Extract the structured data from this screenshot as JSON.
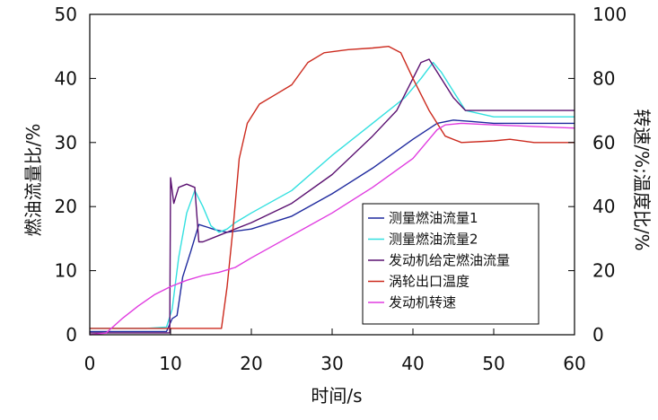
{
  "chart_data": {
    "type": "line",
    "xlabel": "时间/s",
    "ylabel_left": "燃油流量比/%",
    "ylabel_right": "转速/%;温度比/%",
    "xlim": [
      0,
      60
    ],
    "ylim_left": [
      0,
      50
    ],
    "ylim_right": [
      0,
      100
    ],
    "x_ticks": [
      "0",
      "10",
      "20",
      "30",
      "40",
      "50",
      "60"
    ],
    "y_left_ticks": [
      "0",
      "10",
      "20",
      "30",
      "40",
      "50"
    ],
    "y_right_ticks": [
      "0",
      "20",
      "40",
      "60",
      "80",
      "100"
    ],
    "grid": false,
    "legend_position": "bottom-right",
    "series": [
      {
        "name": "测量燃油流量1",
        "axis": "left",
        "color": "#1f2a9e",
        "points": [
          [
            0,
            0.5
          ],
          [
            5,
            0.5
          ],
          [
            9.5,
            0.5
          ],
          [
            10.2,
            2.5
          ],
          [
            10.8,
            3
          ],
          [
            11.5,
            9
          ],
          [
            12.5,
            13
          ],
          [
            13.5,
            17.2
          ],
          [
            14.5,
            16.8
          ],
          [
            15.5,
            16.4
          ],
          [
            17,
            16
          ],
          [
            20,
            16.5
          ],
          [
            25,
            18.5
          ],
          [
            30,
            22
          ],
          [
            35,
            26
          ],
          [
            40,
            30.5
          ],
          [
            43,
            33
          ],
          [
            45,
            33.5
          ],
          [
            47,
            33.3
          ],
          [
            50,
            33
          ],
          [
            55,
            33
          ],
          [
            60,
            33
          ]
        ]
      },
      {
        "name": "测量燃油流量2",
        "axis": "left",
        "color": "#33e0e0",
        "points": [
          [
            0,
            1
          ],
          [
            7,
            1
          ],
          [
            9.5,
            1.2
          ],
          [
            10.2,
            4
          ],
          [
            11,
            12
          ],
          [
            12,
            19
          ],
          [
            13,
            22.5
          ],
          [
            14,
            20
          ],
          [
            15,
            17
          ],
          [
            16,
            16
          ],
          [
            17,
            16.5
          ],
          [
            18,
            17.5
          ],
          [
            20,
            19
          ],
          [
            25,
            22.5
          ],
          [
            30,
            28
          ],
          [
            35,
            33
          ],
          [
            39,
            37
          ],
          [
            41,
            40
          ],
          [
            42.5,
            42.5
          ],
          [
            43.5,
            41
          ],
          [
            45,
            38
          ],
          [
            46.5,
            35
          ],
          [
            50,
            34
          ],
          [
            55,
            34
          ],
          [
            60,
            34
          ]
        ]
      },
      {
        "name": "发动机给定燃油流量",
        "axis": "left",
        "color": "#5a1070",
        "points": [
          [
            0,
            0.3
          ],
          [
            9,
            0.3
          ],
          [
            9.9,
            0.3
          ],
          [
            10,
            24.5
          ],
          [
            10.4,
            20.5
          ],
          [
            11,
            23
          ],
          [
            12,
            23.5
          ],
          [
            13,
            23
          ],
          [
            13.5,
            14.5
          ],
          [
            14,
            14.5
          ],
          [
            16,
            15.5
          ],
          [
            18,
            16.5
          ],
          [
            20,
            17.5
          ],
          [
            25,
            20.5
          ],
          [
            30,
            25
          ],
          [
            35,
            31
          ],
          [
            38,
            35
          ],
          [
            40,
            40
          ],
          [
            41,
            42.5
          ],
          [
            42,
            43
          ],
          [
            43,
            41
          ],
          [
            45,
            37
          ],
          [
            46.5,
            35
          ],
          [
            50,
            35
          ],
          [
            55,
            35
          ],
          [
            60,
            35
          ]
        ]
      },
      {
        "name": "涡轮出口温度",
        "axis": "right",
        "color": "#cc2a1e",
        "points": [
          [
            0,
            2
          ],
          [
            10,
            2
          ],
          [
            16.3,
            2
          ],
          [
            17,
            15
          ],
          [
            17.8,
            35
          ],
          [
            18.5,
            55
          ],
          [
            19.5,
            66
          ],
          [
            21,
            72
          ],
          [
            23,
            75
          ],
          [
            25,
            78
          ],
          [
            27,
            85
          ],
          [
            29,
            88
          ],
          [
            32,
            89
          ],
          [
            35,
            89.5
          ],
          [
            37,
            90
          ],
          [
            38.5,
            88
          ],
          [
            40,
            80
          ],
          [
            42,
            70
          ],
          [
            44,
            62
          ],
          [
            46,
            60
          ],
          [
            50,
            60.5
          ],
          [
            52,
            61
          ],
          [
            55,
            60
          ],
          [
            60,
            60
          ]
        ]
      },
      {
        "name": "发动机转速",
        "axis": "right",
        "color": "#e03ce0",
        "points": [
          [
            0,
            0
          ],
          [
            2,
            0.5
          ],
          [
            4,
            5
          ],
          [
            6,
            9
          ],
          [
            8,
            12.5
          ],
          [
            10,
            15
          ],
          [
            12,
            17
          ],
          [
            14,
            18.5
          ],
          [
            16,
            19.5
          ],
          [
            18,
            21
          ],
          [
            20,
            24
          ],
          [
            25,
            31
          ],
          [
            30,
            38
          ],
          [
            35,
            46
          ],
          [
            40,
            55
          ],
          [
            42,
            61
          ],
          [
            43,
            64
          ],
          [
            44,
            65.5
          ],
          [
            46,
            66
          ],
          [
            50,
            65.5
          ],
          [
            55,
            65
          ],
          [
            60,
            64.5
          ]
        ]
      }
    ]
  }
}
